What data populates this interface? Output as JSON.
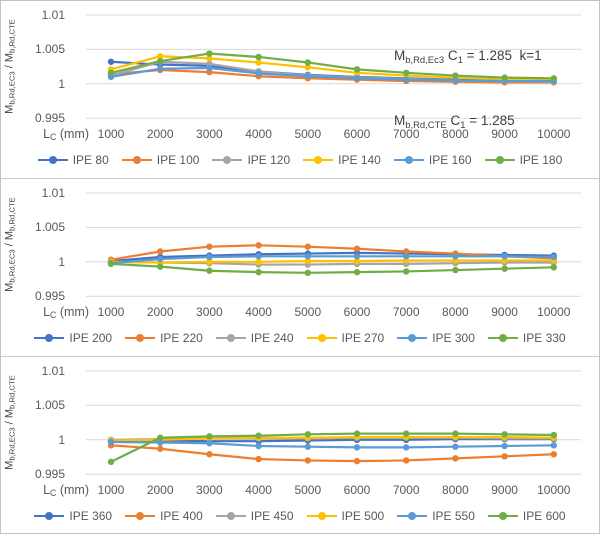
{
  "colors": {
    "grid": "#d9d9d9",
    "axis_text": "#595959",
    "annotation_text": "#404040",
    "series_palette": [
      "#4472C4",
      "#ED7D31",
      "#A5A5A5",
      "#FFC000",
      "#5B9BD5",
      "#70AD47"
    ]
  },
  "axis": {
    "y_tick_labels": [
      "1.01",
      "1.005",
      "1",
      "0.995"
    ],
    "x_tick_labels": [
      "1000",
      "2000",
      "3000",
      "4000",
      "5000",
      "6000",
      "7000",
      "8000",
      "9000",
      "10000"
    ],
    "y_label_parts": {
      "m1": "M",
      "s1": "b,Rd,EC3",
      "sep": " / ",
      "m2": "M",
      "s2": "b,Rd,CTE"
    },
    "x_label_parts": {
      "m": "L",
      "s": "C",
      "rest": " (mm)"
    }
  },
  "annotation": {
    "l1_m": "M",
    "l1_msub": "b,Rd,Ec3",
    "l1_mid": " C",
    "l1_csub": "1",
    "l1_rest": " = 1.285  k=1",
    "l2_m": "M",
    "l2_msub": "b,Rd,CTE",
    "l2_mid": " C",
    "l2_csub": "1",
    "l2_rest": " = 1.285"
  },
  "chart_data": [
    {
      "type": "line",
      "panel": "top",
      "x": [
        1000,
        2000,
        3000,
        4000,
        5000,
        6000,
        7000,
        8000,
        9000,
        10000
      ],
      "x_axis_label": "Lc (mm)",
      "y_axis_label": "Mb,Rd,EC3 / Mb,Rd,CTE",
      "y_ticks": [
        1.01,
        1.005,
        1,
        0.995
      ],
      "ylim": [
        0.995,
        1.01
      ],
      "grid": true,
      "legend_position": "bottom",
      "annotation_lines": [
        "Mb,Rd,Ec3 C1 = 1.285  k=1",
        "Mb,Rd,CTE C1 = 1.285"
      ],
      "series": [
        {
          "name": "IPE 80",
          "color": "#4472C4",
          "values": [
            1.0032,
            1.0028,
            1.0026,
            1.0018,
            1.0013,
            1.001,
            1.0008,
            1.0006,
            1.0005,
            1.0004
          ]
        },
        {
          "name": "IPE 100",
          "color": "#ED7D31",
          "values": [
            1.0014,
            1.002,
            1.0017,
            1.0011,
            1.0008,
            1.0006,
            1.0004,
            1.0003,
            1.0002,
            1.0002
          ]
        },
        {
          "name": "IPE 120",
          "color": "#A5A5A5",
          "values": [
            1.0012,
            1.0032,
            1.0029,
            1.0018,
            1.0012,
            1.0009,
            1.0007,
            1.0005,
            1.0004,
            1.0003
          ]
        },
        {
          "name": "IPE 140",
          "color": "#FFC000",
          "values": [
            1.0021,
            1.004,
            1.0037,
            1.0031,
            1.0024,
            1.0016,
            1.0012,
            1.0009,
            1.0007,
            1.0006
          ]
        },
        {
          "name": "IPE 160",
          "color": "#5B9BD5",
          "values": [
            1.001,
            1.0022,
            1.0023,
            1.0015,
            1.0011,
            1.0008,
            1.0006,
            1.0005,
            1.0004,
            1.0004
          ]
        },
        {
          "name": "IPE 180",
          "color": "#70AD47",
          "values": [
            1.0016,
            1.0033,
            1.0044,
            1.0039,
            1.0031,
            1.0021,
            1.0016,
            1.0012,
            1.0009,
            1.0008
          ]
        }
      ]
    },
    {
      "type": "line",
      "panel": "middle",
      "x": [
        1000,
        2000,
        3000,
        4000,
        5000,
        6000,
        7000,
        8000,
        9000,
        10000
      ],
      "x_axis_label": "Lc (mm)",
      "y_axis_label": "Mb,Rd,EC3 / Mb,Rd,CTE",
      "y_ticks": [
        1.01,
        1.005,
        1,
        0.995
      ],
      "ylim": [
        0.995,
        1.01
      ],
      "grid": true,
      "legend_position": "bottom",
      "series": [
        {
          "name": "IPE 200",
          "color": "#4472C4",
          "values": [
            1.0001,
            1.0007,
            1.0009,
            1.0011,
            1.0012,
            1.0013,
            1.0012,
            1.0011,
            1.001,
            1.0009
          ]
        },
        {
          "name": "IPE 220",
          "color": "#ED7D31",
          "values": [
            1.0003,
            1.0015,
            1.0022,
            1.0024,
            1.0022,
            1.0019,
            1.0015,
            1.0012,
            1.0008,
            1.0005
          ]
        },
        {
          "name": "IPE 240",
          "color": "#A5A5A5",
          "values": [
            1.0,
            0.9999,
            0.9998,
            0.9996,
            0.9996,
            0.9997,
            0.9997,
            0.9998,
            0.9999,
            0.9999
          ]
        },
        {
          "name": "IPE 270",
          "color": "#FFC000",
          "values": [
            1.0,
            0.9999,
            1.0,
            1.0,
            1.0001,
            1.0001,
            1.0002,
            1.0002,
            1.0002,
            1.0002
          ]
        },
        {
          "name": "IPE 300",
          "color": "#5B9BD5",
          "values": [
            0.9998,
            1.0004,
            1.0007,
            1.0008,
            1.0008,
            1.0008,
            1.0008,
            1.0008,
            1.0008,
            1.0007
          ]
        },
        {
          "name": "IPE 330",
          "color": "#70AD47",
          "values": [
            0.9997,
            0.9993,
            0.9987,
            0.9985,
            0.9984,
            0.9985,
            0.9986,
            0.9988,
            0.999,
            0.9992
          ]
        }
      ]
    },
    {
      "type": "line",
      "panel": "bottom",
      "x": [
        1000,
        2000,
        3000,
        4000,
        5000,
        6000,
        7000,
        8000,
        9000,
        10000
      ],
      "x_axis_label": "Lc (mm)",
      "y_axis_label": "Mb,Rd,EC3 / Mb,Rd,CTE",
      "y_ticks": [
        1.01,
        1.005,
        1,
        0.995
      ],
      "ylim": [
        0.995,
        1.01
      ],
      "grid": true,
      "legend_position": "bottom",
      "series": [
        {
          "name": "IPE 360",
          "color": "#4472C4",
          "values": [
            0.9998,
            0.9999,
            0.9998,
            0.9998,
            0.9999,
            1.0,
            1.0,
            1.0001,
            1.0001,
            1.0001
          ]
        },
        {
          "name": "IPE 400",
          "color": "#ED7D31",
          "values": [
            0.9992,
            0.9987,
            0.9979,
            0.9972,
            0.997,
            0.9969,
            0.997,
            0.9973,
            0.9976,
            0.9979
          ]
        },
        {
          "name": "IPE 450",
          "color": "#A5A5A5",
          "values": [
            1.0,
            1.0001,
            1.0002,
            1.0002,
            1.0002,
            1.0003,
            1.0003,
            1.0003,
            1.0002,
            1.0002
          ]
        },
        {
          "name": "IPE 500",
          "color": "#FFC000",
          "values": [
            0.9999,
            1.0,
            1.0002,
            1.0003,
            1.0003,
            1.0004,
            1.0004,
            1.0004,
            1.0004,
            1.0003
          ]
        },
        {
          "name": "IPE 550",
          "color": "#5B9BD5",
          "values": [
            0.9997,
            0.9996,
            0.9995,
            0.9991,
            0.999,
            0.9989,
            0.9989,
            0.999,
            0.9991,
            0.9992
          ]
        },
        {
          "name": "IPE 600",
          "color": "#70AD47",
          "values": [
            0.9968,
            1.0003,
            1.0005,
            1.0006,
            1.0008,
            1.0009,
            1.0009,
            1.0009,
            1.0008,
            1.0007
          ]
        }
      ]
    }
  ]
}
